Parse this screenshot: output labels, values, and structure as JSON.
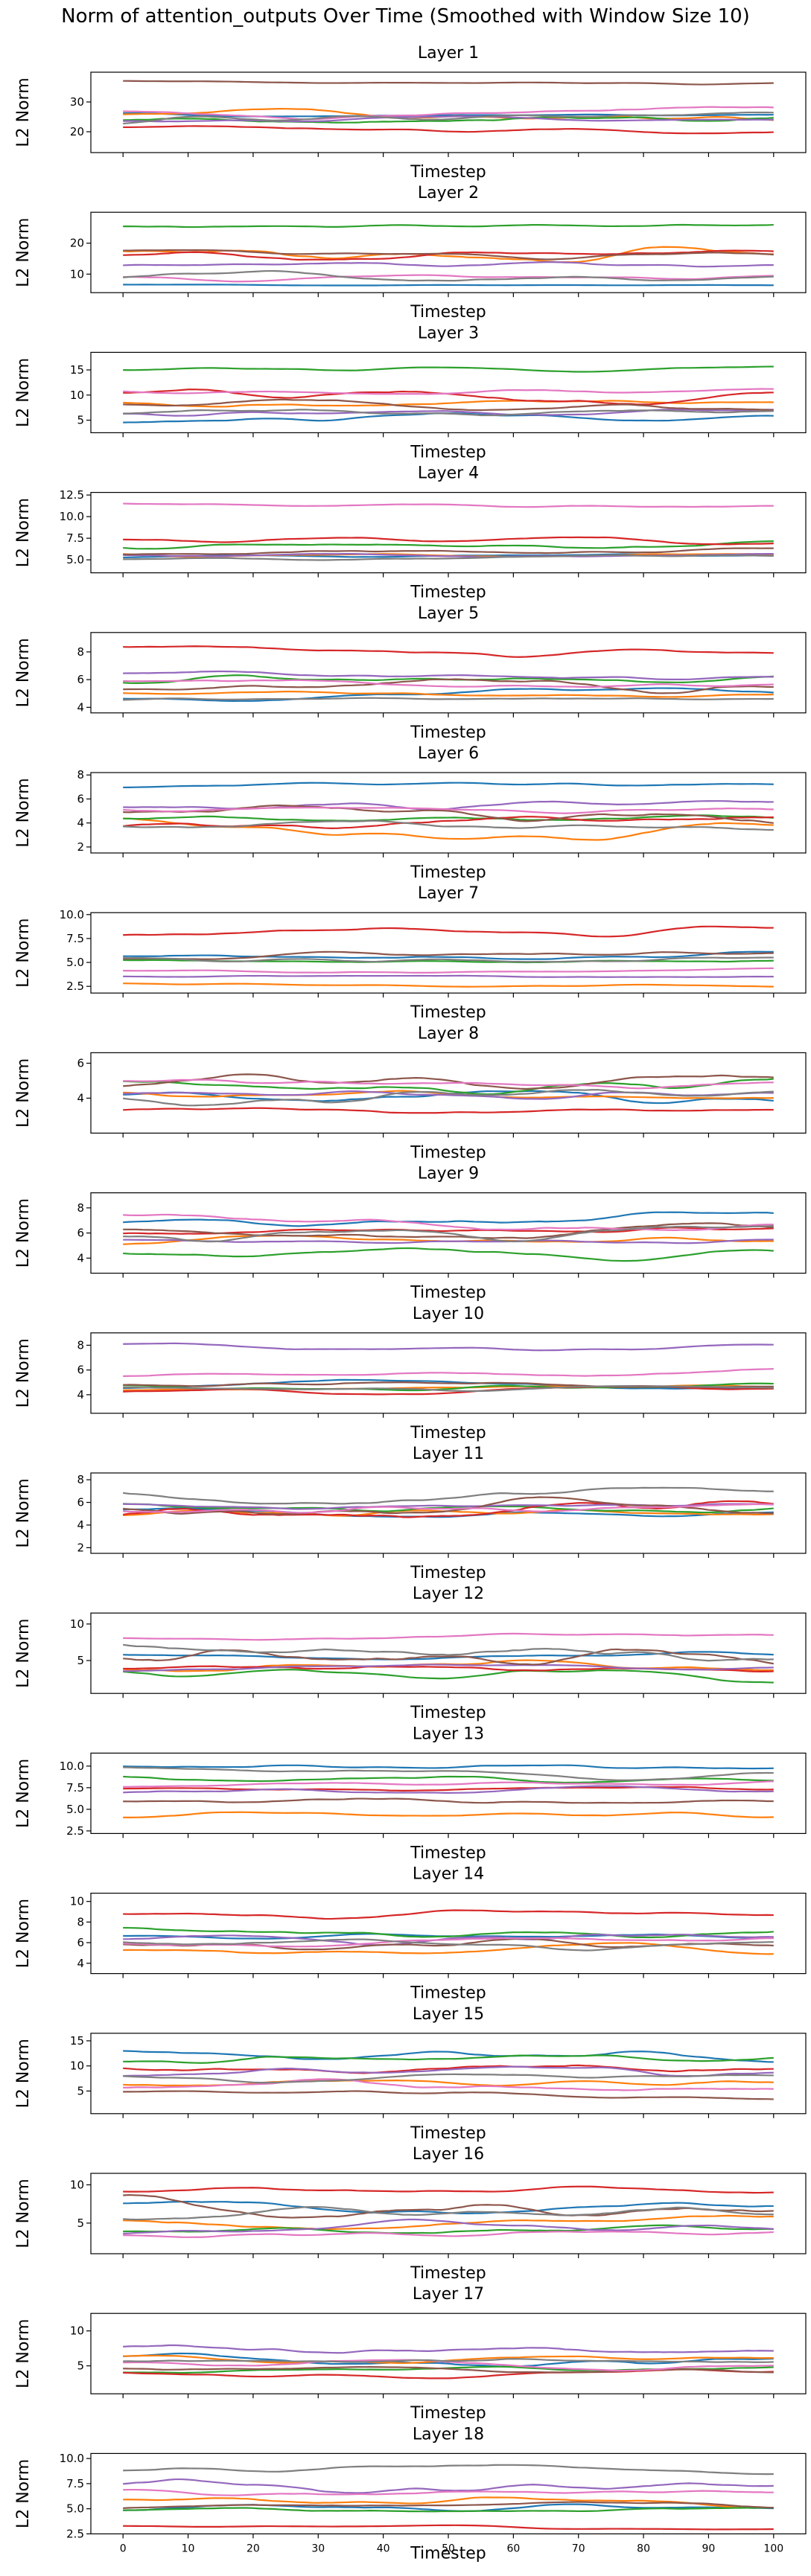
{
  "figure": {
    "title": "Norm of attention_outputs Over Time (Smoothed with Window Size 10)"
  },
  "colors": [
    "#1f77b4",
    "#ff7f0e",
    "#2ca02c",
    "#d62728",
    "#9467bd",
    "#8c564b",
    "#e377c2",
    "#7f7f7f"
  ],
  "chart_data": [
    {
      "type": "line",
      "title": "Layer 1",
      "xlabel": "Timestep",
      "ylabel": "L2 Norm",
      "xlim": [
        0,
        100
      ],
      "xticks": [
        "0",
        "10",
        "20",
        "30",
        "40",
        "50",
        "60",
        "70",
        "80",
        "90",
        "100"
      ],
      "ylim": [
        13,
        40
      ],
      "yticks": [
        "20",
        "30"
      ],
      "series_bands": [
        [
          24,
          27
        ],
        [
          21,
          31
        ],
        [
          20,
          31
        ],
        [
          18,
          24
        ],
        [
          22,
          27
        ],
        [
          35,
          38
        ],
        [
          22,
          31
        ],
        [
          20,
          30
        ]
      ]
    },
    {
      "type": "line",
      "title": "Layer 2",
      "xlabel": "Timestep",
      "ylabel": "L2 Norm",
      "xlim": [
        0,
        100
      ],
      "xticks": [
        "0",
        "10",
        "20",
        "30",
        "40",
        "50",
        "60",
        "70",
        "80",
        "90",
        "100"
      ],
      "ylim": [
        4,
        30
      ],
      "yticks": [
        "10",
        "20"
      ],
      "series_bands": [
        [
          6,
          7
        ],
        [
          8,
          25
        ],
        [
          23,
          28
        ],
        [
          10,
          21
        ],
        [
          10,
          17
        ],
        [
          13,
          20
        ],
        [
          6,
          12
        ],
        [
          6,
          14
        ]
      ]
    },
    {
      "type": "line",
      "title": "Layer 3",
      "xlabel": "Timestep",
      "ylabel": "L2 Norm",
      "xlim": [
        0,
        100
      ],
      "xticks": [
        "0",
        "10",
        "20",
        "30",
        "40",
        "50",
        "60",
        "70",
        "80",
        "90",
        "100"
      ],
      "ylim": [
        2.5,
        18.5
      ],
      "yticks": [
        "5",
        "10",
        "15"
      ],
      "series_bands": [
        [
          3,
          8
        ],
        [
          6,
          11
        ],
        [
          14,
          17
        ],
        [
          5,
          14
        ],
        [
          4,
          9
        ],
        [
          4,
          11
        ],
        [
          9,
          13
        ],
        [
          4,
          10
        ]
      ]
    },
    {
      "type": "line",
      "title": "Layer 4",
      "xlabel": "Timestep",
      "ylabel": "L2 Norm",
      "xlim": [
        0,
        100
      ],
      "xticks": [
        "0",
        "10",
        "20",
        "30",
        "40",
        "50",
        "60",
        "70",
        "80",
        "90",
        "100"
      ],
      "ylim": [
        3.5,
        12.8
      ],
      "yticks": [
        "5.0",
        "7.5",
        "10.0",
        "12.5"
      ],
      "series_bands": [
        [
          4.8,
          6.0
        ],
        [
          5.0,
          6.5
        ],
        [
          5.5,
          8.5
        ],
        [
          5.5,
          8.0
        ],
        [
          4.5,
          6.5
        ],
        [
          5.0,
          7.5
        ],
        [
          10.8,
          12.2
        ],
        [
          4.5,
          6.0
        ]
      ]
    },
    {
      "type": "line",
      "title": "Layer 5",
      "xlabel": "Timestep",
      "ylabel": "L2 Norm",
      "xlim": [
        0,
        100
      ],
      "xticks": [
        "0",
        "10",
        "20",
        "30",
        "40",
        "50",
        "60",
        "70",
        "80",
        "90",
        "100"
      ],
      "ylim": [
        3.6,
        9.4
      ],
      "yticks": [
        "4",
        "6",
        "8"
      ],
      "series_bands": [
        [
          4.2,
          5.8
        ],
        [
          4.3,
          5.5
        ],
        [
          5.0,
          7.0
        ],
        [
          7.2,
          9.0
        ],
        [
          5.5,
          7.2
        ],
        [
          4.3,
          7.2
        ],
        [
          5.0,
          6.5
        ],
        [
          4.2,
          5.0
        ]
      ]
    },
    {
      "type": "line",
      "title": "Layer 6",
      "xlabel": "Timestep",
      "ylabel": "L2 Norm",
      "xlim": [
        0,
        100
      ],
      "xticks": [
        "0",
        "10",
        "20",
        "30",
        "40",
        "50",
        "60",
        "70",
        "80",
        "90",
        "100"
      ],
      "ylim": [
        1.5,
        8.2
      ],
      "yticks": [
        "2",
        "4",
        "6",
        "8"
      ],
      "series_bands": [
        [
          6.5,
          7.8
        ],
        [
          1.8,
          5.5
        ],
        [
          3.0,
          5.5
        ],
        [
          3.0,
          6.5
        ],
        [
          4.0,
          6.5
        ],
        [
          2.5,
          7.5
        ],
        [
          4.0,
          6.0
        ],
        [
          2.5,
          5.0
        ]
      ]
    },
    {
      "type": "line",
      "title": "Layer 7",
      "xlabel": "Timestep",
      "ylabel": "L2 Norm",
      "xlim": [
        0,
        100
      ],
      "xticks": [
        "0",
        "10",
        "20",
        "30",
        "40",
        "50",
        "60",
        "70",
        "80",
        "90",
        "100"
      ],
      "ylim": [
        1.8,
        10.2
      ],
      "yticks": [
        "2.5",
        "5.0",
        "7.5",
        "10.0"
      ],
      "series_bands": [
        [
          4.8,
          7.0
        ],
        [
          2.2,
          3.0
        ],
        [
          4.5,
          6.0
        ],
        [
          7.0,
          9.5
        ],
        [
          3.0,
          4.0
        ],
        [
          4.5,
          7.0
        ],
        [
          3.5,
          4.5
        ],
        [
          4.5,
          6.5
        ]
      ]
    },
    {
      "type": "line",
      "title": "Layer 8",
      "xlabel": "Timestep",
      "ylabel": "L2 Norm",
      "xlim": [
        0,
        100
      ],
      "xticks": [
        "0",
        "10",
        "20",
        "30",
        "40",
        "50",
        "60",
        "70",
        "80",
        "90",
        "100"
      ],
      "ylim": [
        2.0,
        6.6
      ],
      "yticks": [
        "4",
        "6"
      ],
      "series_bands": [
        [
          3.0,
          5.5
        ],
        [
          3.5,
          5.0
        ],
        [
          3.5,
          6.0
        ],
        [
          2.8,
          4.0
        ],
        [
          3.5,
          5.0
        ],
        [
          3.5,
          6.2
        ],
        [
          3.8,
          5.5
        ],
        [
          2.8,
          5.5
        ]
      ]
    },
    {
      "type": "line",
      "title": "Layer 9",
      "xlabel": "Timestep",
      "ylabel": "L2 Norm",
      "xlim": [
        0,
        100
      ],
      "xticks": [
        "0",
        "10",
        "20",
        "30",
        "40",
        "50",
        "60",
        "70",
        "80",
        "90",
        "100"
      ],
      "ylim": [
        2.8,
        9.2
      ],
      "yticks": [
        "4",
        "6",
        "8"
      ],
      "series_bands": [
        [
          5.5,
          8.5
        ],
        [
          4.5,
          6.5
        ],
        [
          3.0,
          5.5
        ],
        [
          5.0,
          7.5
        ],
        [
          4.5,
          6.0
        ],
        [
          4.5,
          8.0
        ],
        [
          5.5,
          8.5
        ],
        [
          4.0,
          7.5
        ]
      ]
    },
    {
      "type": "line",
      "title": "Layer 10",
      "xlabel": "Timestep",
      "ylabel": "L2 Norm",
      "xlim": [
        0,
        100
      ],
      "xticks": [
        "0",
        "10",
        "20",
        "30",
        "40",
        "50",
        "60",
        "70",
        "80",
        "90",
        "100"
      ],
      "ylim": [
        2.5,
        9.0
      ],
      "yticks": [
        "4",
        "6",
        "8"
      ],
      "series_bands": [
        [
          3.5,
          5.5
        ],
        [
          4.0,
          5.0
        ],
        [
          4.0,
          5.5
        ],
        [
          3.8,
          5.0
        ],
        [
          7.0,
          8.5
        ],
        [
          3.8,
          5.5
        ],
        [
          5.0,
          6.5
        ],
        [
          4.0,
          5.0
        ]
      ]
    },
    {
      "type": "line",
      "title": "Layer 11",
      "xlabel": "Timestep",
      "ylabel": "L2 Norm",
      "xlim": [
        0,
        100
      ],
      "xticks": [
        "0",
        "10",
        "20",
        "30",
        "40",
        "50",
        "60",
        "70",
        "80",
        "90",
        "100"
      ],
      "ylim": [
        1.5,
        8.6
      ],
      "yticks": [
        "2",
        "4",
        "6",
        "8"
      ],
      "series_bands": [
        [
          4.0,
          6.0
        ],
        [
          4.0,
          6.5
        ],
        [
          4.5,
          7.0
        ],
        [
          2.0,
          8.0
        ],
        [
          4.5,
          6.5
        ],
        [
          3.5,
          7.5
        ],
        [
          4.5,
          6.5
        ],
        [
          5.0,
          8.0
        ]
      ]
    },
    {
      "type": "line",
      "title": "Layer 12",
      "xlabel": "Timestep",
      "ylabel": "L2 Norm",
      "xlim": [
        0,
        100
      ],
      "xticks": [
        "0",
        "10",
        "20",
        "30",
        "40",
        "50",
        "60",
        "70",
        "80",
        "90",
        "100"
      ],
      "ylim": [
        0.5,
        11.5
      ],
      "yticks": [
        "5",
        "10"
      ],
      "series_bands": [
        [
          4.0,
          7.0
        ],
        [
          2.0,
          7.0
        ],
        [
          1.0,
          5.0
        ],
        [
          2.0,
          6.0
        ],
        [
          3.0,
          5.5
        ],
        [
          1.0,
          10.0
        ],
        [
          7.0,
          9.5
        ],
        [
          2.5,
          10.5
        ]
      ]
    },
    {
      "type": "line",
      "title": "Layer 13",
      "xlabel": "Timestep",
      "ylabel": "L2 Norm",
      "xlim": [
        0,
        100
      ],
      "xticks": [
        "0",
        "10",
        "20",
        "30",
        "40",
        "50",
        "60",
        "70",
        "80",
        "90",
        "100"
      ],
      "ylim": [
        2.2,
        11.5
      ],
      "yticks": [
        "2.5",
        "5.0",
        "7.5",
        "10.0"
      ],
      "series_bands": [
        [
          9.0,
          11.0
        ],
        [
          3.0,
          5.5
        ],
        [
          7.0,
          9.5
        ],
        [
          6.5,
          8.5
        ],
        [
          6.0,
          8.5
        ],
        [
          4.5,
          7.0
        ],
        [
          7.0,
          9.0
        ],
        [
          8.0,
          10.5
        ]
      ]
    },
    {
      "type": "line",
      "title": "Layer 14",
      "xlabel": "Timestep",
      "ylabel": "L2 Norm",
      "xlim": [
        0,
        100
      ],
      "xticks": [
        "0",
        "10",
        "20",
        "30",
        "40",
        "50",
        "60",
        "70",
        "80",
        "90",
        "100"
      ],
      "ylim": [
        3.0,
        10.8
      ],
      "yticks": [
        "4",
        "6",
        "8",
        "10"
      ],
      "series_bands": [
        [
          5.5,
          7.5
        ],
        [
          4.0,
          6.5
        ],
        [
          5.5,
          8.5
        ],
        [
          7.5,
          10.0
        ],
        [
          5.0,
          8.0
        ],
        [
          3.5,
          7.5
        ],
        [
          5.0,
          7.5
        ],
        [
          4.5,
          7.0
        ]
      ]
    },
    {
      "type": "line",
      "title": "Layer 15",
      "xlabel": "Timestep",
      "ylabel": "L2 Norm",
      "xlim": [
        0,
        100
      ],
      "xticks": [
        "0",
        "10",
        "20",
        "30",
        "40",
        "50",
        "60",
        "70",
        "80",
        "90",
        "100"
      ],
      "ylim": [
        0.5,
        16.5
      ],
      "yticks": [
        "5",
        "10",
        "15"
      ],
      "series_bands": [
        [
          8.0,
          15.0
        ],
        [
          4.0,
          10.0
        ],
        [
          9.0,
          15.0
        ],
        [
          5.0,
          13.0
        ],
        [
          6.0,
          12.0
        ],
        [
          2.5,
          6.0
        ],
        [
          2.0,
          9.0
        ],
        [
          5.0,
          10.0
        ]
      ]
    },
    {
      "type": "line",
      "title": "Layer 16",
      "xlabel": "Timestep",
      "ylabel": "L2 Norm",
      "xlim": [
        0,
        100
      ],
      "xticks": [
        "0",
        "10",
        "20",
        "30",
        "40",
        "50",
        "60",
        "70",
        "80",
        "90",
        "100"
      ],
      "ylim": [
        1.0,
        11.5
      ],
      "yticks": [
        "5",
        "10"
      ],
      "series_bands": [
        [
          4.5,
          9.0
        ],
        [
          3.0,
          8.0
        ],
        [
          2.5,
          6.0
        ],
        [
          7.5,
          10.5
        ],
        [
          2.5,
          6.0
        ],
        [
          2.5,
          10.5
        ],
        [
          2.0,
          5.0
        ],
        [
          4.0,
          10.0
        ]
      ]
    },
    {
      "type": "line",
      "title": "Layer 17",
      "xlabel": "Timestep",
      "ylabel": "L2 Norm",
      "xlim": [
        0,
        100
      ],
      "xticks": [
        "0",
        "10",
        "20",
        "30",
        "40",
        "50",
        "60",
        "70",
        "80",
        "90",
        "100"
      ],
      "ylim": [
        1.0,
        12.5
      ],
      "yticks": [
        "5",
        "10"
      ],
      "series_bands": [
        [
          3.0,
          8.0
        ],
        [
          4.5,
          7.5
        ],
        [
          3.0,
          6.0
        ],
        [
          2.5,
          5.0
        ],
        [
          5.0,
          11.0
        ],
        [
          3.0,
          5.5
        ],
        [
          3.5,
          7.0
        ],
        [
          4.0,
          8.0
        ]
      ]
    },
    {
      "type": "line",
      "title": "Layer 18",
      "xlabel": "Timestep",
      "ylabel": "L2 Norm",
      "xlim": [
        0,
        100
      ],
      "xticks": [
        "0",
        "10",
        "20",
        "30",
        "40",
        "50",
        "60",
        "70",
        "80",
        "90",
        "100"
      ],
      "ylim": [
        2.5,
        10.5
      ],
      "yticks": [
        "2.5",
        "5.0",
        "7.5",
        "10.0"
      ],
      "series_bands": [
        [
          4.0,
          6.5
        ],
        [
          4.5,
          7.5
        ],
        [
          4.0,
          6.0
        ],
        [
          2.8,
          3.5
        ],
        [
          5.0,
          9.5
        ],
        [
          4.5,
          6.5
        ],
        [
          5.5,
          8.0
        ],
        [
          8.0,
          10.0
        ]
      ]
    }
  ]
}
